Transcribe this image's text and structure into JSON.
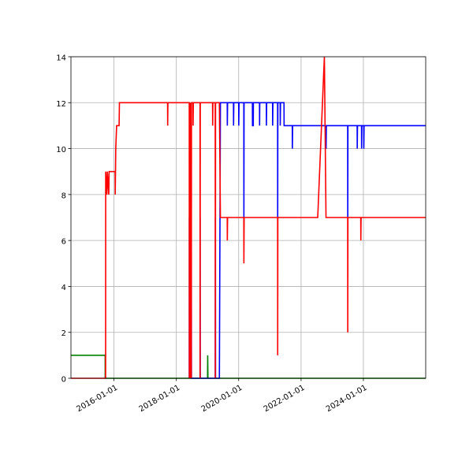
{
  "chart_data": {
    "type": "line",
    "title": "",
    "xlabel": "",
    "ylabel": "",
    "xlim": [
      "2014-08-15",
      "2025-12-31"
    ],
    "ylim": [
      0,
      14
    ],
    "grid": true,
    "x_ticks": [
      "2016-01-01",
      "2018-01-01",
      "2020-01-01",
      "2022-01-01",
      "2024-01-01"
    ],
    "y_ticks": [
      0,
      2,
      4,
      6,
      8,
      10,
      12,
      14
    ],
    "series": [
      {
        "color": "#008000",
        "points": [
          [
            "2014-08-15",
            1
          ],
          [
            "2015-09-20",
            1
          ],
          [
            "2015-09-20",
            0
          ],
          [
            "2019-01-01",
            0
          ],
          [
            "2019-01-03",
            1
          ],
          [
            "2019-01-06",
            0
          ],
          [
            "2025-12-31",
            0
          ]
        ]
      },
      {
        "color": "#0000ff",
        "points": [
          [
            "2018-06-01",
            0
          ],
          [
            "2018-06-02",
            7
          ],
          [
            "2018-06-04",
            0
          ],
          [
            "2018-06-10",
            7
          ],
          [
            "2018-06-12",
            0
          ],
          [
            "2018-06-18",
            7
          ],
          [
            "2018-06-20",
            0
          ],
          [
            "2018-06-25",
            7
          ],
          [
            "2018-06-27",
            0
          ],
          [
            "2018-10-05",
            0
          ],
          [
            "2018-10-06",
            7
          ],
          [
            "2018-10-08",
            0
          ],
          [
            "2019-04-01",
            0
          ],
          [
            "2019-04-03",
            7
          ],
          [
            "2019-04-05",
            0
          ],
          [
            "2019-05-20",
            0
          ],
          [
            "2019-06-01",
            12
          ],
          [
            "2019-08-20",
            12
          ],
          [
            "2019-08-21",
            11
          ],
          [
            "2019-08-24",
            12
          ],
          [
            "2019-11-01",
            12
          ],
          [
            "2019-11-02",
            11
          ],
          [
            "2019-11-05",
            12
          ],
          [
            "2020-01-01",
            12
          ],
          [
            "2020-01-02",
            11
          ],
          [
            "2020-01-05",
            12
          ],
          [
            "2020-03-01",
            12
          ],
          [
            "2020-03-02",
            7
          ],
          [
            "2020-03-04",
            12
          ],
          [
            "2020-06-10",
            12
          ],
          [
            "2020-06-11",
            11
          ],
          [
            "2020-06-20",
            11
          ],
          [
            "2020-06-21",
            12
          ],
          [
            "2020-09-01",
            12
          ],
          [
            "2020-09-02",
            11
          ],
          [
            "2020-09-04",
            12
          ],
          [
            "2020-11-20",
            12
          ],
          [
            "2020-11-21",
            11
          ],
          [
            "2020-11-24",
            12
          ],
          [
            "2021-02-01",
            12
          ],
          [
            "2021-02-02",
            11
          ],
          [
            "2021-02-05",
            12
          ],
          [
            "2021-04-01",
            12
          ],
          [
            "2021-04-02",
            7
          ],
          [
            "2021-04-04",
            12
          ],
          [
            "2021-05-01",
            12
          ],
          [
            "2021-05-02",
            11
          ],
          [
            "2021-05-05",
            12
          ],
          [
            "2021-06-15",
            12
          ],
          [
            "2021-06-16",
            11
          ],
          [
            "2021-09-20",
            11
          ],
          [
            "2021-09-21",
            10
          ],
          [
            "2021-09-24",
            11
          ],
          [
            "2022-10-20",
            11
          ],
          [
            "2022-10-21",
            10
          ],
          [
            "2022-10-24",
            11
          ],
          [
            "2023-07-01",
            11
          ],
          [
            "2023-07-02",
            7
          ],
          [
            "2023-07-04",
            11
          ],
          [
            "2023-10-20",
            11
          ],
          [
            "2023-10-21",
            10
          ],
          [
            "2023-10-24",
            11
          ],
          [
            "2023-12-10",
            11
          ],
          [
            "2023-12-11",
            10
          ],
          [
            "2023-12-14",
            11
          ],
          [
            "2024-01-05",
            11
          ],
          [
            "2024-01-06",
            10
          ],
          [
            "2024-01-09",
            11
          ],
          [
            "2025-12-31",
            11
          ]
        ]
      },
      {
        "color": "#ff0000",
        "points": [
          [
            "2014-08-15",
            0
          ],
          [
            "2015-09-25",
            0
          ],
          [
            "2015-09-26",
            9
          ],
          [
            "2015-10-10",
            8
          ],
          [
            "2015-10-15",
            9
          ],
          [
            "2015-11-01",
            8
          ],
          [
            "2015-11-05",
            9
          ],
          [
            "2016-01-15",
            9
          ],
          [
            "2016-01-16",
            8
          ],
          [
            "2016-01-22",
            10
          ],
          [
            "2016-02-01",
            11
          ],
          [
            "2016-03-01",
            11
          ],
          [
            "2016-03-05",
            12
          ],
          [
            "2017-09-20",
            12
          ],
          [
            "2017-09-21",
            11
          ],
          [
            "2017-09-24",
            12
          ],
          [
            "2018-06-01",
            12
          ],
          [
            "2018-06-02",
            0
          ],
          [
            "2018-06-04",
            12
          ],
          [
            "2018-06-10",
            0
          ],
          [
            "2018-06-12",
            12
          ],
          [
            "2018-06-18",
            0
          ],
          [
            "2018-06-20",
            12
          ],
          [
            "2018-06-25",
            0
          ],
          [
            "2018-06-27",
            12
          ],
          [
            "2018-07-15",
            12
          ],
          [
            "2018-07-16",
            11
          ],
          [
            "2018-07-19",
            12
          ],
          [
            "2018-10-05",
            12
          ],
          [
            "2018-10-06",
            0
          ],
          [
            "2018-10-08",
            12
          ],
          [
            "2019-03-01",
            12
          ],
          [
            "2019-03-02",
            11
          ],
          [
            "2019-03-05",
            12
          ],
          [
            "2019-04-01",
            12
          ],
          [
            "2019-04-03",
            0
          ],
          [
            "2019-04-05",
            12
          ],
          [
            "2019-05-20",
            12
          ],
          [
            "2019-06-01",
            7
          ],
          [
            "2019-08-20",
            7
          ],
          [
            "2019-08-21",
            6
          ],
          [
            "2019-08-24",
            7
          ],
          [
            "2020-03-01",
            7
          ],
          [
            "2020-03-02",
            5
          ],
          [
            "2020-03-05",
            7
          ],
          [
            "2021-04-01",
            7
          ],
          [
            "2021-04-02",
            1
          ],
          [
            "2021-04-04",
            7
          ],
          [
            "2022-07-15",
            7
          ],
          [
            "2022-10-01",
            14
          ],
          [
            "2022-10-20",
            7
          ],
          [
            "2023-07-01",
            7
          ],
          [
            "2023-07-02",
            2
          ],
          [
            "2023-07-04",
            7
          ],
          [
            "2023-12-01",
            7
          ],
          [
            "2023-12-02",
            6
          ],
          [
            "2023-12-05",
            7
          ],
          [
            "2025-12-31",
            7
          ]
        ]
      }
    ]
  }
}
